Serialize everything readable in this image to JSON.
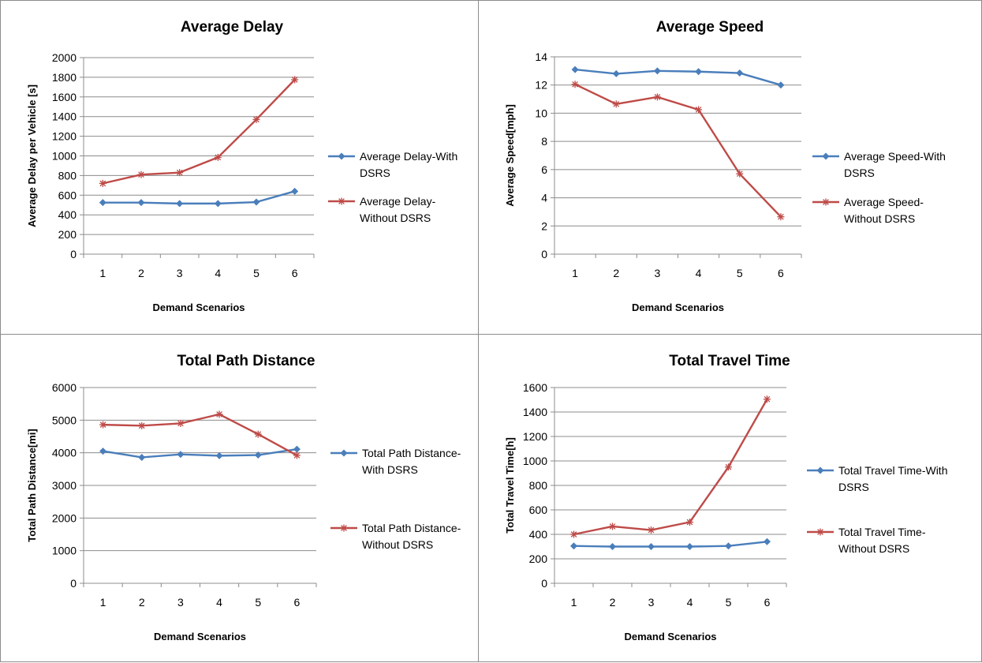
{
  "chart_data": [
    {
      "type": "line",
      "title": "Average Delay",
      "xlabel": "Demand Scenarios",
      "ylabel": "Average Delay per Vehicle [s]",
      "categories": [
        "1",
        "2",
        "3",
        "4",
        "5",
        "6"
      ],
      "ylim": [
        0,
        2000
      ],
      "yticks": [
        0,
        200,
        400,
        600,
        800,
        1000,
        1200,
        1400,
        1600,
        1800,
        2000
      ],
      "grid": true,
      "legend": "right",
      "series": [
        {
          "name": "Average Delay-With DSRS",
          "legend_lines": [
            "Average Delay-With",
            "DSRS"
          ],
          "color": "#4a7ebb",
          "marker": "diamond",
          "values": [
            525,
            525,
            515,
            515,
            530,
            640
          ]
        },
        {
          "name": "Average Delay-Without DSRS",
          "legend_lines": [
            "Average Delay-",
            "Without DSRS"
          ],
          "color": "#be4b48",
          "marker": "star",
          "values": [
            720,
            810,
            830,
            985,
            1370,
            1775
          ]
        }
      ]
    },
    {
      "type": "line",
      "title": "Average Speed",
      "xlabel": "Demand Scenarios",
      "ylabel": "Average Speed[mph]",
      "categories": [
        "1",
        "2",
        "3",
        "4",
        "5",
        "6"
      ],
      "ylim": [
        0,
        14
      ],
      "yticks": [
        0,
        2,
        4,
        6,
        8,
        10,
        12,
        14
      ],
      "grid": true,
      "legend": "right",
      "series": [
        {
          "name": "Average Speed-With DSRS",
          "legend_lines": [
            "Average Speed-With",
            "DSRS"
          ],
          "color": "#4a7ebb",
          "marker": "diamond",
          "values": [
            13.1,
            12.8,
            13.0,
            12.95,
            12.85,
            12.0
          ]
        },
        {
          "name": "Average Speed-Without DSRS",
          "legend_lines": [
            "Average Speed-",
            "Without DSRS"
          ],
          "color": "#be4b48",
          "marker": "star",
          "values": [
            12.05,
            10.65,
            11.15,
            10.25,
            5.7,
            2.65
          ]
        }
      ]
    },
    {
      "type": "line",
      "title": "Total Path Distance",
      "xlabel": "Demand Scenarios",
      "ylabel": "Total Path Distance[mi]",
      "categories": [
        "1",
        "2",
        "3",
        "4",
        "5",
        "6"
      ],
      "ylim": [
        0,
        6000
      ],
      "yticks": [
        0,
        1000,
        2000,
        3000,
        4000,
        5000,
        6000
      ],
      "grid": true,
      "legend": "right",
      "series": [
        {
          "name": "Total Path Distance-With DSRS",
          "legend_lines": [
            "Total Path Distance-",
            "With DSRS"
          ],
          "color": "#4a7ebb",
          "marker": "diamond",
          "values": [
            4050,
            3860,
            3950,
            3910,
            3930,
            4110
          ]
        },
        {
          "name": "Total Path Distance-Without DSRS",
          "legend_lines": [
            "Total Path Distance-",
            "Without DSRS"
          ],
          "color": "#be4b48",
          "marker": "star",
          "values": [
            4860,
            4830,
            4900,
            5180,
            4570,
            3920
          ]
        }
      ]
    },
    {
      "type": "line",
      "title": "Total Travel Time",
      "xlabel": "Demand Scenarios",
      "ylabel": "Total Travel Time[h]",
      "categories": [
        "1",
        "2",
        "3",
        "4",
        "5",
        "6"
      ],
      "ylim": [
        0,
        1600
      ],
      "yticks": [
        0,
        200,
        400,
        600,
        800,
        1000,
        1200,
        1400,
        1600
      ],
      "grid": true,
      "legend": "right",
      "series": [
        {
          "name": "Total Travel Time-With DSRS",
          "legend_lines": [
            "Total Travel Time-With",
            "DSRS"
          ],
          "color": "#4a7ebb",
          "marker": "diamond",
          "values": [
            305,
            300,
            300,
            300,
            305,
            340
          ]
        },
        {
          "name": "Total Travel Time-Without DSRS",
          "legend_lines": [
            "Total Travel Time-",
            "Without DSRS"
          ],
          "color": "#be4b48",
          "marker": "star",
          "values": [
            400,
            465,
            435,
            500,
            950,
            1505
          ]
        }
      ]
    }
  ]
}
